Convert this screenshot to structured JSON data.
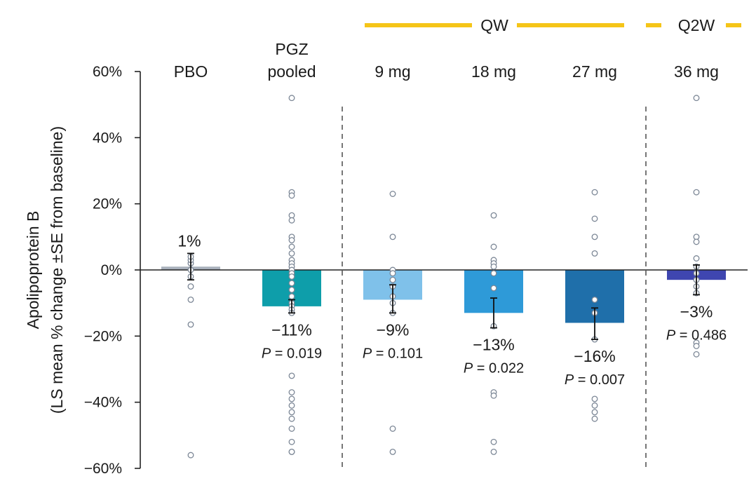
{
  "colors": {
    "freq_bar": "#F5C518",
    "axis": "#222222",
    "dot_fill": "#ffffff",
    "dot_stroke": "#7c8796",
    "error": "#111111",
    "divider": "#555555"
  },
  "chart_data": {
    "type": "bar",
    "title": "",
    "ylabel_line1": "Apolipoprotein B",
    "ylabel_line2": "(LS mean % change ±SE from baseline)",
    "ylim": [
      -60,
      60
    ],
    "yticks": [
      {
        "value": 60,
        "label": "60%"
      },
      {
        "value": 40,
        "label": "40%"
      },
      {
        "value": 20,
        "label": "20%"
      },
      {
        "value": 0,
        "label": "0%"
      },
      {
        "value": -20,
        "label": "−20%"
      },
      {
        "value": -40,
        "label": "−40%"
      },
      {
        "value": -60,
        "label": "−60%"
      }
    ],
    "frequency_groups": [
      {
        "label": "QW",
        "style": "solid",
        "from_category": 2,
        "to_category": 4
      },
      {
        "label": "Q2W",
        "style": "dashed",
        "from_category": 5,
        "to_category": 5
      }
    ],
    "categories": [
      {
        "label_lines": [
          "PBO"
        ],
        "value": 1,
        "se_low": -3,
        "se_high": 5,
        "color": "#A9B1BC",
        "value_label": "1%",
        "label_pos": "above",
        "p_prefix": "",
        "p_value": "",
        "points": [
          -56,
          -16.5,
          -9,
          -5,
          -2,
          0,
          2,
          3,
          4
        ]
      },
      {
        "label_lines": [
          "PGZ",
          "pooled"
        ],
        "value": -11,
        "se_low": -13,
        "se_high": -9,
        "color": "#0E9EAA",
        "value_label": "−11%",
        "label_pos": "below",
        "p_prefix": "P",
        "p_value": " = 0.019",
        "points": [
          52,
          23.5,
          22.5,
          16.5,
          15,
          10,
          9,
          7,
          5,
          3,
          2,
          1,
          0,
          -1,
          -2,
          -4,
          -6,
          -8,
          -10,
          -11,
          -12,
          -13,
          -32,
          -37,
          -39,
          -41,
          -43,
          -45,
          -48,
          -52,
          -55,
          -55
        ]
      },
      {
        "label_lines": [
          "9 mg"
        ],
        "value": -9,
        "se_low": -13,
        "se_high": -4.5,
        "color": "#7FC1EA",
        "value_label": "−9%",
        "label_pos": "below",
        "p_prefix": "P",
        "p_value": " = 0.101",
        "points": [
          23,
          10,
          0,
          -1,
          -3,
          -5,
          -8,
          -10,
          -13,
          -48,
          -55
        ]
      },
      {
        "label_lines": [
          "18 mg"
        ],
        "value": -13,
        "se_low": -17.5,
        "se_high": -8.5,
        "color": "#2E9AD8",
        "value_label": "−13%",
        "label_pos": "below",
        "p_prefix": "P",
        "p_value": " = 0.022",
        "points": [
          16.5,
          7,
          3,
          2,
          1,
          -1,
          -5.5,
          -17,
          -37,
          -38,
          -52,
          -55
        ]
      },
      {
        "label_lines": [
          "27 mg"
        ],
        "value": -16,
        "se_low": -21,
        "se_high": -11.5,
        "color": "#1F6FAA",
        "value_label": "−16%",
        "label_pos": "below",
        "p_prefix": "P",
        "p_value": " = 0.007",
        "points": [
          23.5,
          15.5,
          10,
          5,
          -9,
          -13,
          -21,
          -39,
          -41,
          -43,
          -45
        ]
      },
      {
        "label_lines": [
          "36 mg"
        ],
        "value": -3,
        "se_low": -7.5,
        "se_high": 1.5,
        "color": "#3F46B0",
        "value_label": "−3%",
        "label_pos": "below",
        "p_prefix": "P",
        "p_value": " = 0.486",
        "points": [
          52,
          23.5,
          10,
          8.5,
          3.5,
          1,
          -1,
          -3,
          -5,
          -7,
          -22,
          -23,
          -25.5
        ]
      }
    ]
  }
}
